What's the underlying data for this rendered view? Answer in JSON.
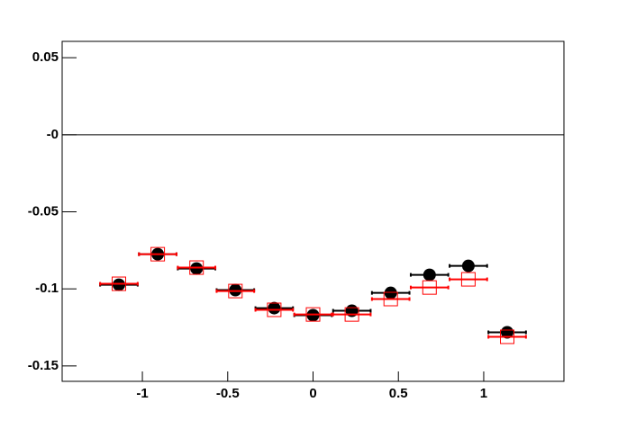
{
  "chart_data": {
    "type": "errorbar",
    "xlim": [
      -1.47,
      1.47
    ],
    "ylim": [
      -0.16,
      0.0606
    ],
    "xticks": [
      -1,
      -0.5,
      0,
      0.5,
      1
    ],
    "yticks": [
      0.05,
      {
        "value": 0,
        "label": "-0"
      },
      -0.05,
      -0.1,
      -0.15
    ],
    "hline": 0,
    "series": [
      {
        "color": "#000000",
        "marker": "circle",
        "xerr": 0.11,
        "x": [
          -1.1375,
          -0.91,
          -0.6825,
          -0.455,
          -0.2275,
          0,
          0.2275,
          0.455,
          0.6825,
          0.91,
          1.1375
        ],
        "values": [
          -0.0973,
          -0.0775,
          -0.0868,
          -0.1008,
          -0.1125,
          -0.1171,
          -0.1142,
          -0.1026,
          -0.0909,
          -0.0851,
          -0.1282
        ]
      },
      {
        "color": "#ff0000",
        "marker": "open-square",
        "xerr": 0.11,
        "x": [
          -1.1375,
          -0.91,
          -0.6825,
          -0.455,
          -0.2275,
          0,
          0.2275,
          0.455,
          0.6825,
          0.91,
          1.1375
        ],
        "values": [
          -0.0967,
          -0.0775,
          -0.0862,
          -0.1014,
          -0.1136,
          -0.1166,
          -0.1166,
          -0.1066,
          -0.0991,
          -0.0938,
          -0.1311
        ]
      }
    ]
  }
}
